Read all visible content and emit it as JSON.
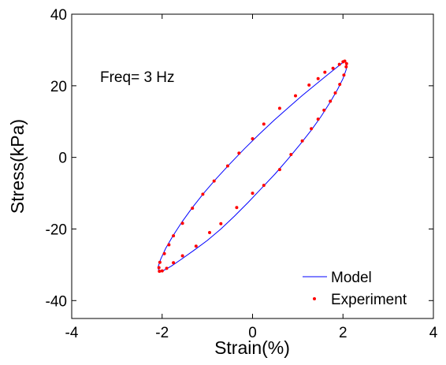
{
  "chart_data": {
    "type": "scatter",
    "title": "",
    "xlabel": "Strain(%)",
    "ylabel": "Stress(kPa)",
    "xlim": [
      -4,
      4
    ],
    "ylim": [
      -45,
      40
    ],
    "xticks": [
      -4,
      -2,
      0,
      2,
      4
    ],
    "yticks": [
      -40,
      -20,
      0,
      20,
      40
    ],
    "xtick_labels": [
      "-4",
      "-2",
      "0",
      "2",
      "4"
    ],
    "ytick_labels": [
      "-40",
      "-20",
      "0",
      "20",
      "40"
    ],
    "grid": false,
    "legend_position": "bottom-right",
    "annotations": [
      {
        "text": "Freq= 3 Hz",
        "x": -3.35,
        "y": 22
      }
    ],
    "series": [
      {
        "name": "Model",
        "kind": "line",
        "color": "#0000ff",
        "points": [
          [
            2.05,
            27.0
          ],
          [
            2.08,
            26.2
          ],
          [
            2.07,
            24.5
          ],
          [
            2.0,
            22.0
          ],
          [
            1.88,
            19.0
          ],
          [
            1.72,
            15.5
          ],
          [
            1.52,
            11.5
          ],
          [
            1.3,
            7.6
          ],
          [
            1.05,
            3.6
          ],
          [
            0.78,
            -0.5
          ],
          [
            0.5,
            -4.6
          ],
          [
            0.2,
            -8.6
          ],
          [
            -0.1,
            -12.6
          ],
          [
            -0.4,
            -16.4
          ],
          [
            -0.7,
            -20.0
          ],
          [
            -1.0,
            -23.2
          ],
          [
            -1.3,
            -26.0
          ],
          [
            -1.58,
            -28.5
          ],
          [
            -1.8,
            -30.4
          ],
          [
            -1.97,
            -31.6
          ],
          [
            -2.07,
            -31.9
          ],
          [
            -2.09,
            -30.6
          ],
          [
            -2.03,
            -28.4
          ],
          [
            -1.92,
            -25.4
          ],
          [
            -1.76,
            -21.9
          ],
          [
            -1.56,
            -18.0
          ],
          [
            -1.33,
            -14.0
          ],
          [
            -1.08,
            -10.0
          ],
          [
            -0.8,
            -5.9
          ],
          [
            -0.5,
            -1.8
          ],
          [
            -0.18,
            2.4
          ],
          [
            0.15,
            6.5
          ],
          [
            0.48,
            10.4
          ],
          [
            0.8,
            14.0
          ],
          [
            1.1,
            17.3
          ],
          [
            1.4,
            20.4
          ],
          [
            1.65,
            23.0
          ],
          [
            1.85,
            25.0
          ],
          [
            1.98,
            26.3
          ],
          [
            2.05,
            27.0
          ]
        ]
      },
      {
        "name": "Experiment",
        "kind": "markers",
        "color": "#ff0000",
        "points": [
          [
            2.04,
            26.9
          ],
          [
            2.08,
            26.2
          ],
          [
            2.07,
            25.3
          ],
          [
            2.02,
            23.0
          ],
          [
            1.93,
            20.4
          ],
          [
            1.83,
            18.0
          ],
          [
            1.72,
            15.7
          ],
          [
            1.58,
            13.2
          ],
          [
            1.45,
            10.7
          ],
          [
            1.3,
            8.0
          ],
          [
            1.1,
            4.6
          ],
          [
            0.85,
            0.8
          ],
          [
            0.6,
            -3.4
          ],
          [
            0.25,
            -7.8
          ],
          [
            0.0,
            -10.0
          ],
          [
            -0.35,
            -14.0
          ],
          [
            -0.7,
            -18.5
          ],
          [
            -0.95,
            -21.0
          ],
          [
            -1.25,
            -24.8
          ],
          [
            -1.55,
            -27.5
          ],
          [
            -1.75,
            -29.4
          ],
          [
            -1.9,
            -31.0
          ],
          [
            -2.0,
            -31.7
          ],
          [
            -2.06,
            -31.8
          ],
          [
            -2.07,
            -30.8
          ],
          [
            -2.05,
            -29.3
          ],
          [
            -1.95,
            -26.9
          ],
          [
            -1.85,
            -24.4
          ],
          [
            -1.75,
            -21.9
          ],
          [
            -1.55,
            -18.4
          ],
          [
            -1.33,
            -14.2
          ],
          [
            -1.1,
            -10.3
          ],
          [
            -0.85,
            -6.6
          ],
          [
            -0.55,
            -2.4
          ],
          [
            -0.3,
            1.2
          ],
          [
            0.0,
            5.2
          ],
          [
            0.25,
            9.3
          ],
          [
            0.6,
            13.7
          ],
          [
            0.95,
            17.2
          ],
          [
            1.25,
            20.2
          ],
          [
            1.45,
            22.0
          ],
          [
            1.6,
            23.8
          ],
          [
            1.78,
            24.9
          ],
          [
            1.92,
            26.0
          ],
          [
            2.0,
            26.7
          ]
        ]
      }
    ]
  }
}
